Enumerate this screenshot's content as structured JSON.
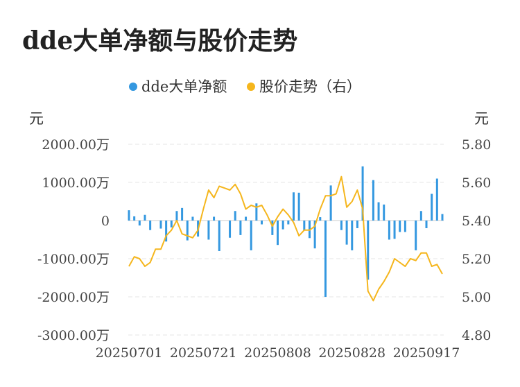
{
  "chart_title": "dde大单净额与股价走势",
  "chart_data": {
    "type": "bar",
    "title": "dde大单净额与股价走势",
    "left_axis": {
      "unit": "元",
      "ticks": [
        "2000.00万",
        "1000.00万",
        "0",
        "-1000.00万",
        "-2000.00万",
        "-3000.00万"
      ],
      "tick_values": [
        2000,
        1000,
        0,
        -1000,
        -2000,
        -3000
      ],
      "ylim": [
        -3000,
        2000
      ]
    },
    "right_axis": {
      "unit": "元",
      "ticks": [
        "5.80",
        "5.60",
        "5.40",
        "5.20",
        "5.00",
        "4.80"
      ],
      "tick_values": [
        5.8,
        5.6,
        5.4,
        5.2,
        5.0,
        4.8
      ],
      "ylim": [
        4.8,
        5.8
      ]
    },
    "x_ticks": [
      {
        "label": "20250701",
        "index": 0
      },
      {
        "label": "20250721",
        "index": 14
      },
      {
        "label": "20250808",
        "index": 28
      },
      {
        "label": "20250828",
        "index": 42
      },
      {
        "label": "20250917",
        "index": 56
      }
    ],
    "legend": [
      {
        "label": "dde大单净额",
        "color": "#3498e0"
      },
      {
        "label": "股价走势（右）",
        "color": "#f5b61d"
      }
    ],
    "legend_position": "top-center",
    "grid": true,
    "series": [
      {
        "name": "dde大单净额",
        "type": "bar",
        "axis": "left",
        "color": "#3498e0",
        "values": [
          270,
          110,
          -130,
          150,
          -250,
          0,
          -210,
          -550,
          -180,
          250,
          330,
          -520,
          100,
          -420,
          0,
          -500,
          100,
          -800,
          0,
          -450,
          250,
          -380,
          100,
          -780,
          450,
          -100,
          0,
          -380,
          -640,
          -230,
          -100,
          740,
          730,
          -260,
          -460,
          -730,
          90,
          -2000,
          920,
          0,
          -250,
          -630,
          -780,
          -200,
          1420,
          -1550,
          1060,
          480,
          420,
          -500,
          -480,
          -300,
          -300,
          0,
          -780,
          250,
          -200,
          700,
          1100,
          170
        ]
      },
      {
        "name": "股价走势（右）",
        "type": "line",
        "axis": "right",
        "color": "#f5b61d",
        "values": [
          5.16,
          5.21,
          5.2,
          5.16,
          5.18,
          5.25,
          5.25,
          5.32,
          5.35,
          5.4,
          5.33,
          5.32,
          5.31,
          5.35,
          5.46,
          5.56,
          5.52,
          5.58,
          5.57,
          5.56,
          5.59,
          5.54,
          5.46,
          5.48,
          5.47,
          5.48,
          5.43,
          5.37,
          5.42,
          5.46,
          5.43,
          5.39,
          5.32,
          5.35,
          5.35,
          5.37,
          5.46,
          5.53,
          5.53,
          5.54,
          5.63,
          5.47,
          5.5,
          5.56,
          5.46,
          5.03,
          4.98,
          5.04,
          5.08,
          5.13,
          5.2,
          5.18,
          5.16,
          5.2,
          5.19,
          5.23,
          5.23,
          5.16,
          5.17,
          5.12
        ]
      }
    ]
  }
}
